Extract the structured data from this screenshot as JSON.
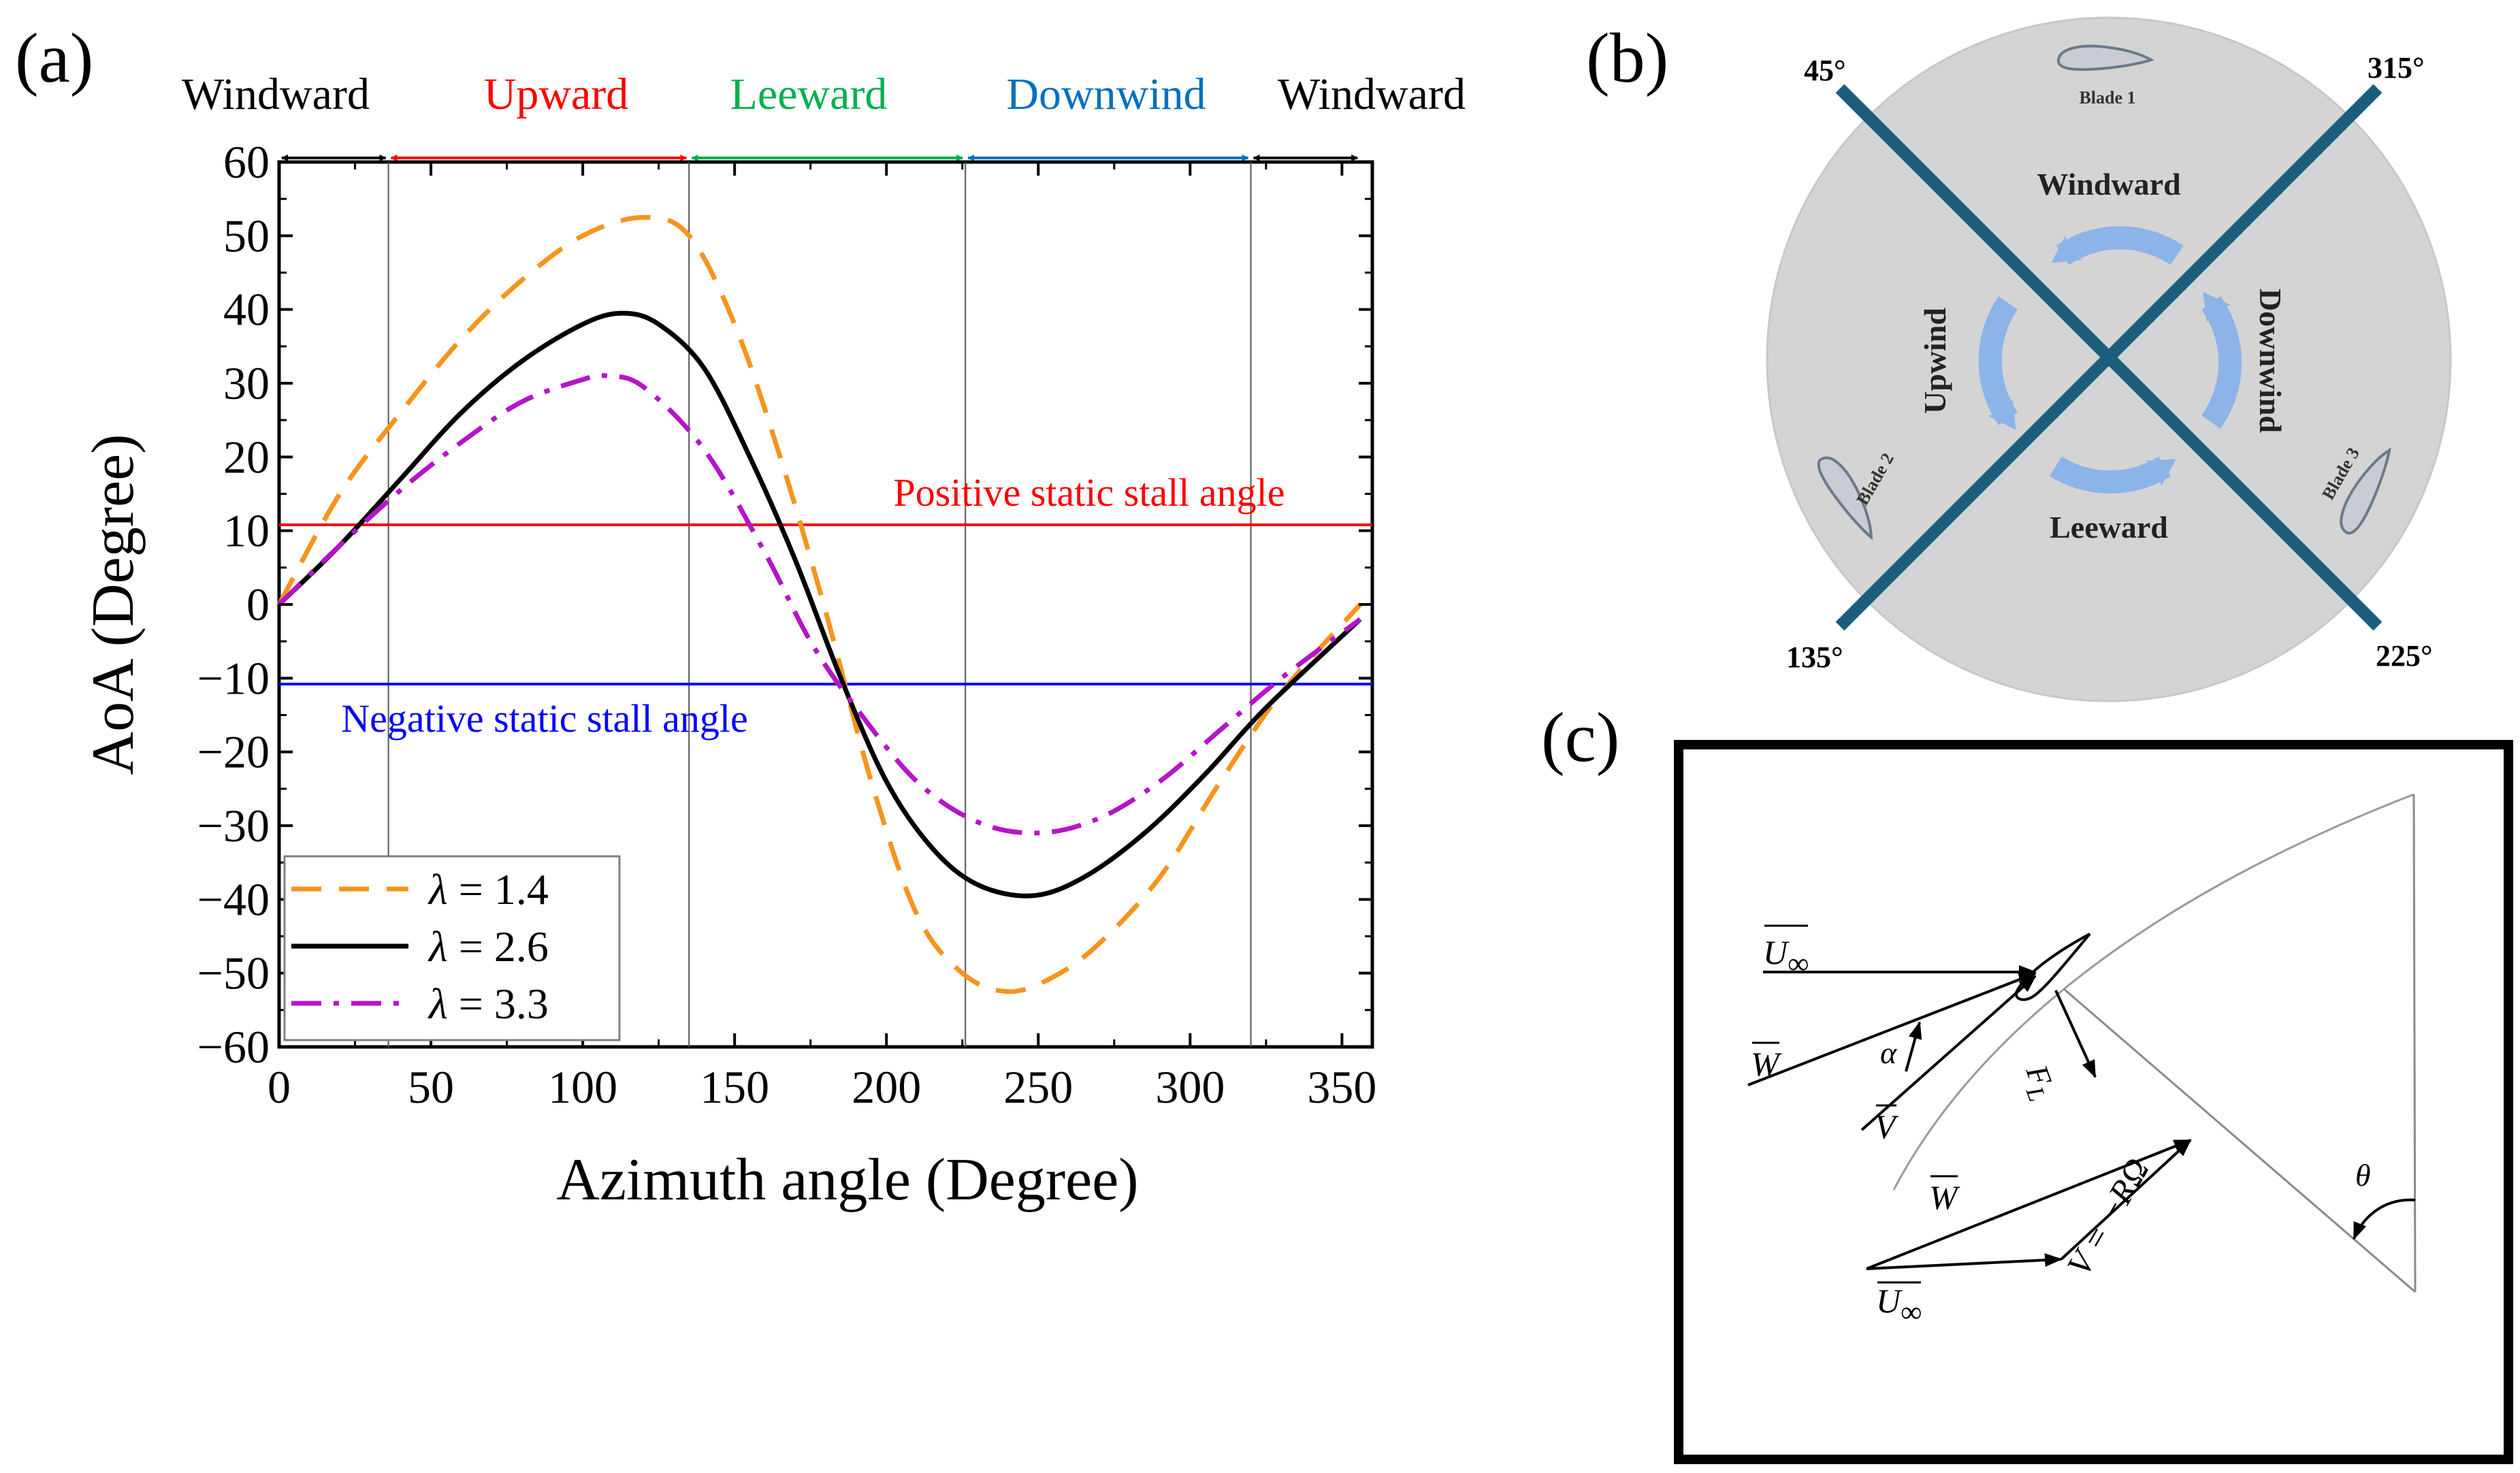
{
  "panel_labels": {
    "a": "(a)",
    "b": "(b)",
    "c": "(c)"
  },
  "colors": {
    "orange": "#f7941d",
    "black": "#000000",
    "magenta": "#b515c8",
    "red": "#ff0000",
    "blue": "#0000ff",
    "green": "#00b050",
    "cyan": "#0070c0",
    "disk": "#d4d4d4",
    "cross": "#1b5e7b",
    "arrow": "#8cb4e8"
  },
  "chart_data": {
    "type": "line",
    "xlabel": "Azimuth angle (Degree)",
    "ylabel": "AoA (Degree)",
    "xlim": [
      0,
      360
    ],
    "ylim": [
      -60,
      60
    ],
    "xticks": [
      0,
      50,
      100,
      150,
      200,
      250,
      300,
      350
    ],
    "yticks": [
      60,
      50,
      40,
      30,
      20,
      10,
      0,
      -10,
      -20,
      -30,
      -40,
      -50,
      -60
    ],
    "sectors": [
      {
        "label": "Windward",
        "from": 0,
        "to": 36,
        "color": "#000000"
      },
      {
        "label": "Upward",
        "from": 36,
        "to": 135,
        "color": "#ff0000"
      },
      {
        "label": "Leeward",
        "from": 135,
        "to": 226,
        "color": "#00b050"
      },
      {
        "label": "Downwind",
        "from": 226,
        "to": 320,
        "color": "#0070c0"
      },
      {
        "label": "Windward",
        "from": 320,
        "to": 356,
        "color": "#000000"
      }
    ],
    "sector_boundaries": [
      36,
      135,
      226,
      320
    ],
    "reference_lines": [
      {
        "label": "Positive static stall angle",
        "y": 10.8,
        "color": "#ff0000"
      },
      {
        "label": "Negative static stall angle",
        "y": -10.8,
        "color": "#0000ff"
      }
    ],
    "series": [
      {
        "name": "λ = 1.4",
        "lambda": "1.4",
        "style": "dash",
        "color": "#f7941d",
        "x": [
          0,
          20,
          40,
          60,
          80,
          100,
          120,
          135,
          150,
          165,
          180,
          195,
          210,
          225,
          240,
          255,
          270,
          290,
          310,
          330,
          356
        ],
        "y": [
          0,
          15,
          26,
          36,
          44,
          50,
          52.5,
          50,
          38,
          20,
          -1,
          -24,
          -42,
          -50,
          -52.5,
          -50.5,
          -46,
          -37,
          -24,
          -12,
          0
        ]
      },
      {
        "name": "λ = 2.6",
        "lambda": "2.6",
        "style": "solid",
        "color": "#000000",
        "x": [
          0,
          20,
          40,
          60,
          80,
          100,
          113,
          125,
          140,
          155,
          170,
          185,
          200,
          215,
          230,
          248,
          265,
          285,
          305,
          325,
          356
        ],
        "y": [
          0,
          8,
          17,
          26,
          33,
          38,
          39.5,
          38,
          32,
          20,
          6,
          -10,
          -24,
          -33,
          -38,
          -39.5,
          -37,
          -31,
          -23,
          -14,
          -2
        ]
      },
      {
        "name": "λ = 3.3",
        "lambda": "3.3",
        "style": "dashdot",
        "color": "#b515c8",
        "x": [
          0,
          20,
          40,
          60,
          80,
          100,
          108,
          120,
          140,
          160,
          175,
          190,
          210,
          230,
          250,
          270,
          290,
          310,
          330,
          356
        ],
        "y": [
          0,
          8,
          15.5,
          22,
          27.5,
          30.5,
          31,
          29.5,
          21,
          7,
          -5,
          -14,
          -24,
          -29.5,
          -31,
          -29,
          -24,
          -17,
          -10,
          -2
        ]
      }
    ]
  },
  "diagram_b": {
    "angles": {
      "tl": "45°",
      "tr": "315°",
      "bl": "135°",
      "br": "225°"
    },
    "sectors": {
      "top": "Windward",
      "left": "Upwind",
      "right": "Downwind",
      "bottom": "Leeward"
    },
    "blades": {
      "b1": "Blade 1",
      "b2": "Blade 2",
      "b3": "Blade 3"
    }
  },
  "diagram_c": {
    "u_inf": "U",
    "u_inf_sub": "∞",
    "w": "W",
    "v": "V",
    "alpha": "α",
    "fl": "F",
    "fl_sub": "L",
    "theta": "θ",
    "v_eq": "V = −RΩ"
  }
}
